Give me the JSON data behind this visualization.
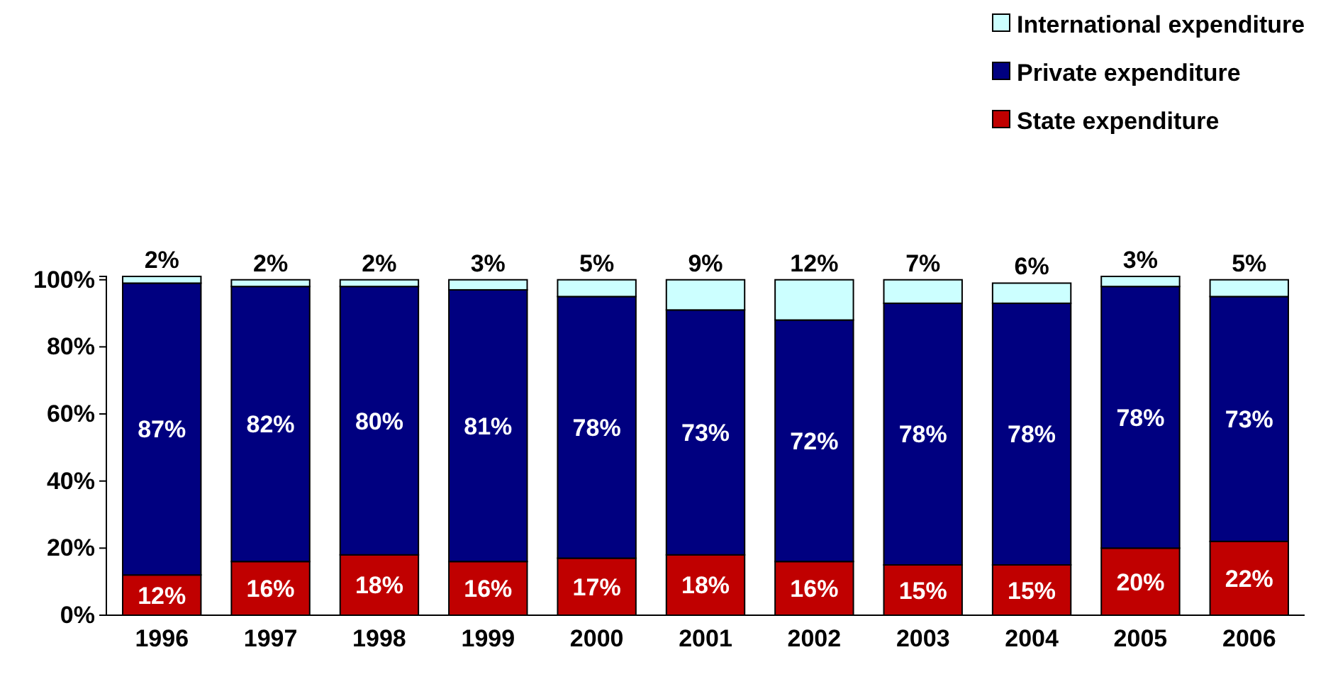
{
  "chart_data": {
    "type": "bar",
    "stacked": true,
    "categories": [
      "1996",
      "1997",
      "1998",
      "1999",
      "2000",
      "2001",
      "2002",
      "2003",
      "2004",
      "2005",
      "2006"
    ],
    "series": [
      {
        "name": "State expenditure",
        "color": "#c00000",
        "values": [
          12,
          16,
          18,
          16,
          17,
          18,
          16,
          15,
          15,
          20,
          22
        ],
        "value_labels": [
          "12%",
          "16%",
          "18%",
          "16%",
          "17%",
          "18%",
          "16%",
          "15%",
          "15%",
          "20%",
          "22%"
        ]
      },
      {
        "name": "Private expenditure",
        "color": "#000080",
        "values": [
          87,
          82,
          80,
          81,
          78,
          73,
          72,
          78,
          78,
          78,
          73
        ],
        "value_labels": [
          "87%",
          "82%",
          "80%",
          "81%",
          "78%",
          "73%",
          "72%",
          "78%",
          "78%",
          "78%",
          "73%"
        ]
      },
      {
        "name": "International expenditure",
        "color": "#ccffff",
        "values": [
          2,
          2,
          2,
          3,
          5,
          9,
          12,
          7,
          6,
          3,
          5
        ],
        "value_labels": [
          "2%",
          "2%",
          "2%",
          "3%",
          "5%",
          "9%",
          "12%",
          "7%",
          "6%",
          "3%",
          "5%"
        ]
      }
    ],
    "ylim": [
      0,
      101
    ],
    "yticks": [
      {
        "value": 0,
        "label": "0%"
      },
      {
        "value": 20,
        "label": "20%"
      },
      {
        "value": 40,
        "label": "40%"
      },
      {
        "value": 60,
        "label": "60%"
      },
      {
        "value": 80,
        "label": "80%"
      },
      {
        "value": 100,
        "label": "100%"
      }
    ],
    "grid": false,
    "legend": "top right"
  }
}
